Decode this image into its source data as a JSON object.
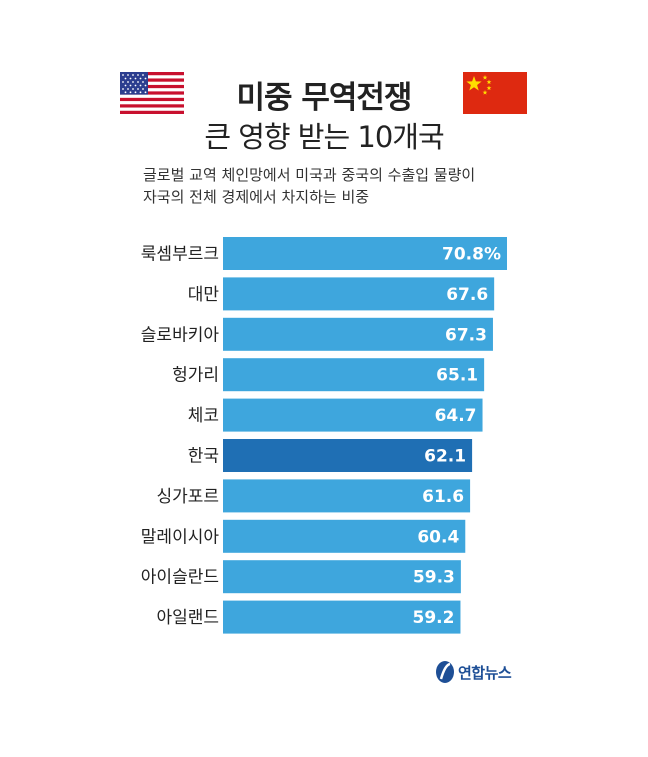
{
  "header": {
    "title": "미중 무역전쟁",
    "subtitle": "큰 영향 받는 10개국",
    "description_line1": "글로벌 교역 체인망에서 미국과 중국의 수출입 물량이",
    "description_line2": "자국의 전체 경제에서 차지하는 비중"
  },
  "flags": {
    "left": "us-flag-icon",
    "right": "china-flag-icon"
  },
  "logo": {
    "text": "연합뉴스",
    "icon": "yonhap-logo-icon"
  },
  "colors": {
    "bar": "#3ea6dd",
    "highlight_bar": "#1f6fb4",
    "logo": "#1e4f96"
  },
  "chart_data": {
    "type": "bar",
    "orientation": "horizontal",
    "categories": [
      "룩셈부르크",
      "대만",
      "슬로바키아",
      "헝가리",
      "체코",
      "한국",
      "싱가포르",
      "말레이시아",
      "아이슬란드",
      "아일랜드"
    ],
    "values": [
      70.8,
      67.6,
      67.3,
      65.1,
      64.7,
      62.1,
      61.6,
      60.4,
      59.3,
      59.2
    ],
    "value_labels": [
      "70.8%",
      "67.6",
      "67.3",
      "65.1",
      "64.7",
      "62.1",
      "61.6",
      "60.4",
      "59.3",
      "59.2"
    ],
    "highlight": "한국",
    "xlim": [
      0,
      70.8
    ],
    "grid": false,
    "legend": "none"
  }
}
